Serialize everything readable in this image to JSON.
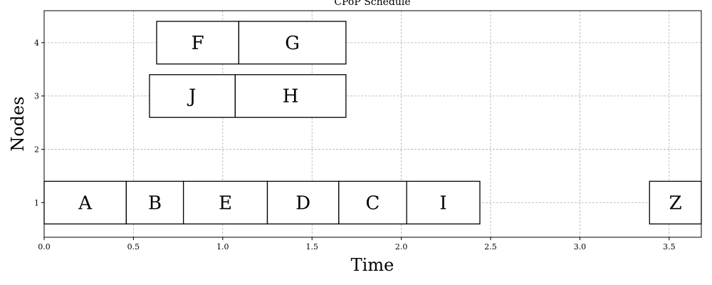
{
  "chart_data": {
    "type": "gantt",
    "title": "CPoP Schedule",
    "xlabel": "Time",
    "ylabel": "Nodes",
    "xlim": [
      0,
      3.68
    ],
    "ylim": [
      0.35,
      4.6
    ],
    "grid": true,
    "xticks": [
      {
        "value": 0.0,
        "label": "0.0"
      },
      {
        "value": 0.5,
        "label": "0.5"
      },
      {
        "value": 1.0,
        "label": "1.0"
      },
      {
        "value": 1.5,
        "label": "1.5"
      },
      {
        "value": 2.0,
        "label": "2.0"
      },
      {
        "value": 2.5,
        "label": "2.5"
      },
      {
        "value": 3.0,
        "label": "3.0"
      },
      {
        "value": 3.5,
        "label": "3.5"
      }
    ],
    "yticks": [
      {
        "value": 1,
        "label": "1"
      },
      {
        "value": 2,
        "label": "2"
      },
      {
        "value": 3,
        "label": "3"
      },
      {
        "value": 4,
        "label": "4"
      }
    ],
    "bar_height": 0.8,
    "tasks": [
      {
        "name": "A",
        "node": 1,
        "start": 0.0,
        "end": 0.46
      },
      {
        "name": "B",
        "node": 1,
        "start": 0.46,
        "end": 0.78
      },
      {
        "name": "E",
        "node": 1,
        "start": 0.78,
        "end": 1.25
      },
      {
        "name": "D",
        "node": 1,
        "start": 1.25,
        "end": 1.65
      },
      {
        "name": "C",
        "node": 1,
        "start": 1.65,
        "end": 2.03
      },
      {
        "name": "I",
        "node": 1,
        "start": 2.03,
        "end": 2.44
      },
      {
        "name": "Z",
        "node": 1,
        "start": 3.39,
        "end": 3.68
      },
      {
        "name": "J",
        "node": 3,
        "start": 0.59,
        "end": 1.07
      },
      {
        "name": "H",
        "node": 3,
        "start": 1.07,
        "end": 1.69
      },
      {
        "name": "F",
        "node": 4,
        "start": 0.63,
        "end": 1.09
      },
      {
        "name": "G",
        "node": 4,
        "start": 1.09,
        "end": 1.69
      }
    ]
  }
}
